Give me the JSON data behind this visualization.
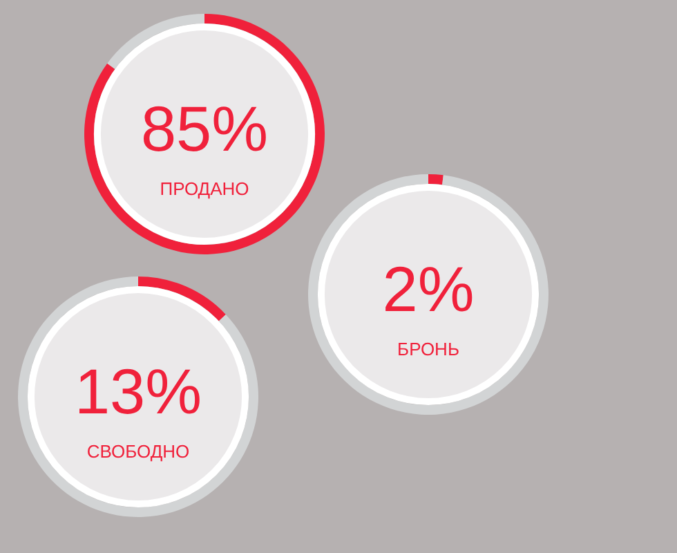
{
  "chart_data": [
    {
      "type": "donut",
      "categories": [
        "ПРОДАНО",
        null
      ],
      "values": [
        85,
        15
      ],
      "colors": [
        "#f0213b",
        "#d2d4d5"
      ],
      "value_labels": [
        "85%",
        null
      ]
    },
    {
      "type": "donut",
      "categories": [
        "БРОНЬ",
        null
      ],
      "values": [
        2,
        98
      ],
      "colors": [
        "#f0213b",
        "#d2d4d5"
      ],
      "value_labels": [
        "2%",
        null
      ]
    },
    {
      "type": "donut",
      "categories": [
        "СВОБОДНО",
        null
      ],
      "values": [
        13,
        87
      ],
      "colors": [
        "#f0213b",
        "#d2d4d5"
      ],
      "value_labels": [
        "13%",
        null
      ]
    }
  ]
}
